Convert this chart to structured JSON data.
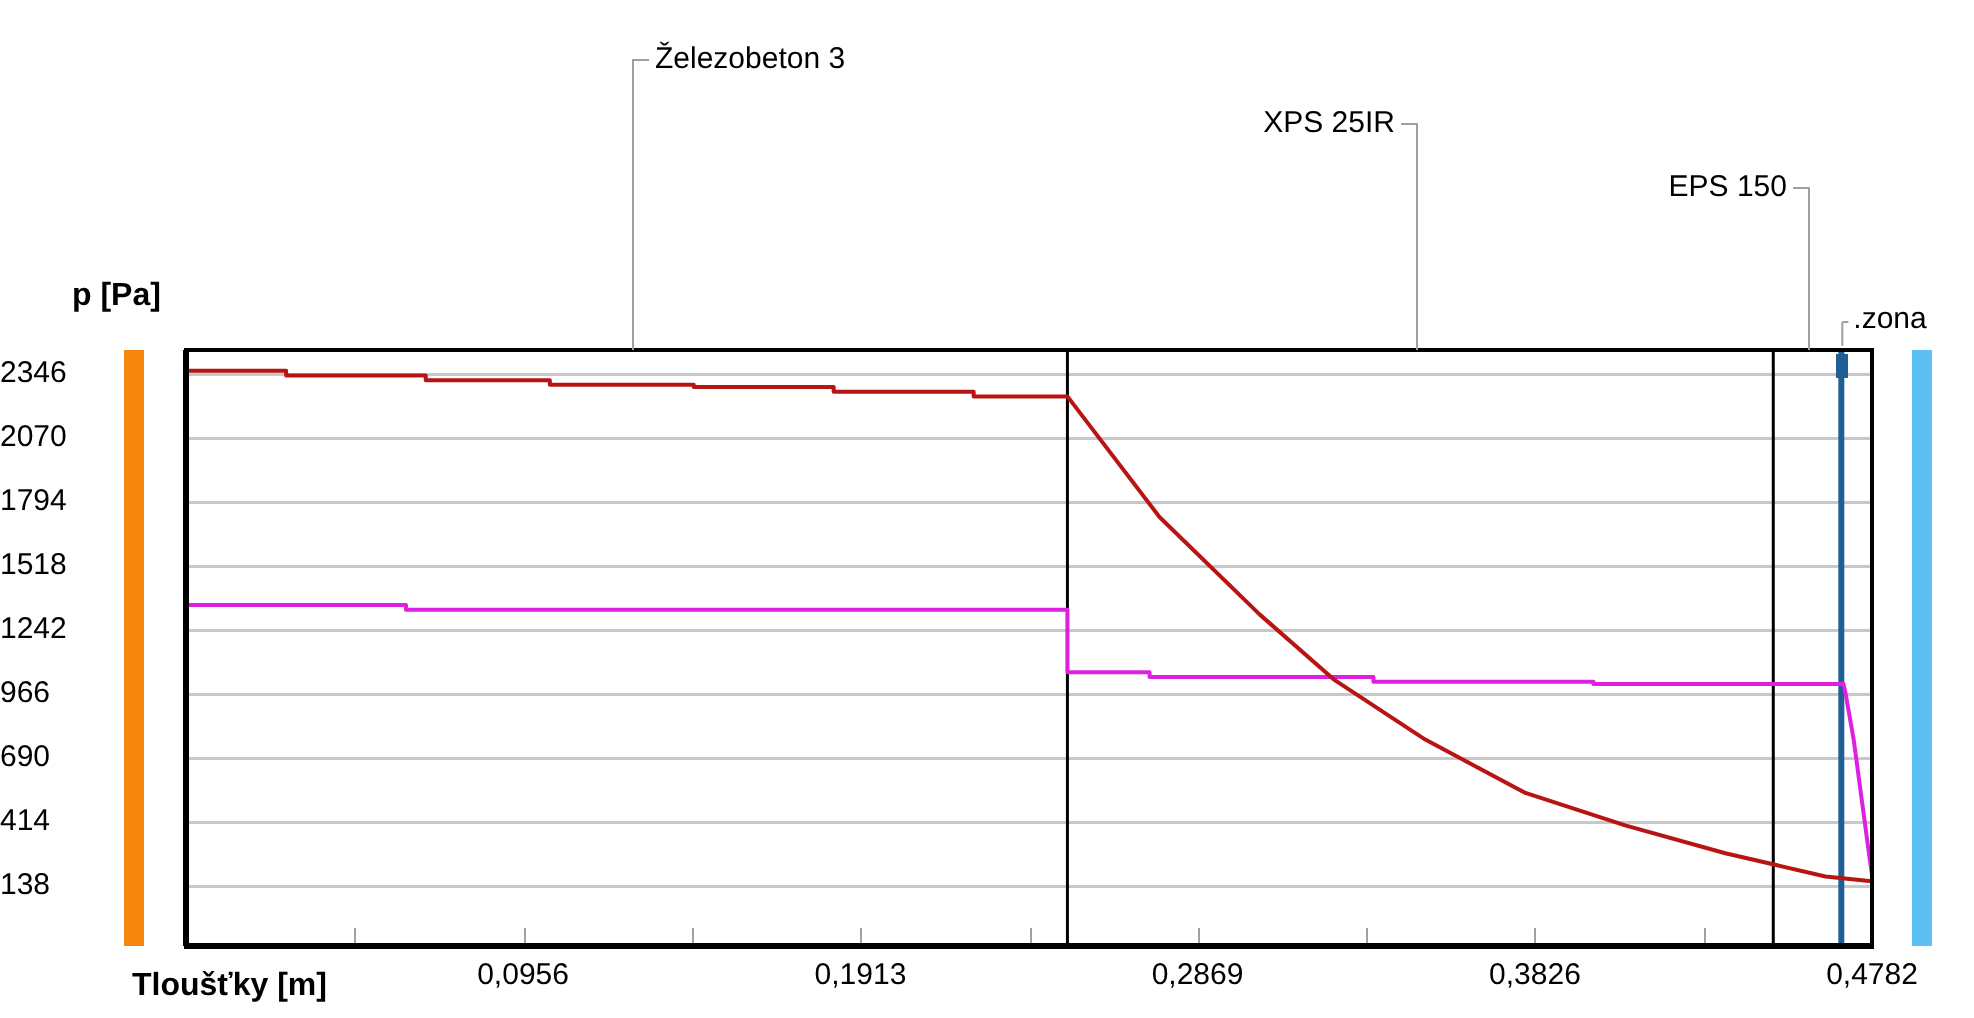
{
  "chart_data": {
    "type": "line",
    "xlabel": "Tloušťky [m]",
    "ylabel": "p [Pa]",
    "xlim": [
      0,
      0.4782
    ],
    "ylim": [
      -120,
      2450
    ],
    "xticks": [
      {
        "value": 0.0478,
        "label": null
      },
      {
        "value": 0.0956,
        "label": "0,0956"
      },
      {
        "value": 0.1435,
        "label": null
      },
      {
        "value": 0.1913,
        "label": "0,1913"
      },
      {
        "value": 0.2391,
        "label": null
      },
      {
        "value": 0.2869,
        "label": "0,2869"
      },
      {
        "value": 0.3348,
        "label": null
      },
      {
        "value": 0.3826,
        "label": "0,3826"
      },
      {
        "value": 0.4304,
        "label": null
      },
      {
        "value": 0.4782,
        "label": "0,4782"
      }
    ],
    "yticks": [
      138,
      414,
      690,
      966,
      1242,
      1518,
      1794,
      2070,
      2346
    ],
    "grid": "y",
    "legend": false,
    "series": [
      {
        "color": "#b81414",
        "x": [
          0,
          0.0284,
          0.0284,
          0.068,
          0.068,
          0.1032,
          0.1032,
          0.144,
          0.144,
          0.1837,
          0.1837,
          0.2234,
          0.2234,
          0.25,
          0.2761,
          0.3045,
          0.3255,
          0.3515,
          0.3799,
          0.4082,
          0.4366,
          0.465,
          0.4774,
          0.4782
        ],
        "values": [
          2360,
          2360,
          2340,
          2340,
          2320,
          2320,
          2300,
          2300,
          2290,
          2290,
          2270,
          2270,
          2250,
          2250,
          1730,
          1310,
          1030,
          770,
          540,
          400,
          280,
          180,
          160,
          160
        ]
      },
      {
        "color": "#e020e0",
        "x": [
          0,
          0.0624,
          0.0624,
          0.25,
          0.25,
          0.2733,
          0.2733,
          0.3368,
          0.3368,
          0.3992,
          0.3992,
          0.4701,
          0.4707,
          0.473,
          0.4776,
          0.4782
        ],
        "values": [
          1350,
          1350,
          1330,
          1330,
          1060,
          1060,
          1040,
          1040,
          1020,
          1020,
          1010,
          1010,
          970,
          770,
          250,
          190
        ]
      }
    ],
    "ref_lines": [
      {
        "axis": "x",
        "value": 0.25,
        "color": "#000000"
      },
      {
        "axis": "x",
        "value": 0.4502,
        "color": "#000000"
      },
      {
        "axis": "x",
        "value": 0.4695,
        "color": "#1f5f96",
        "label": ".zona"
      }
    ],
    "annotations": [
      "Železobeton 3",
      "XPS 25IR",
      "EPS 150"
    ]
  }
}
